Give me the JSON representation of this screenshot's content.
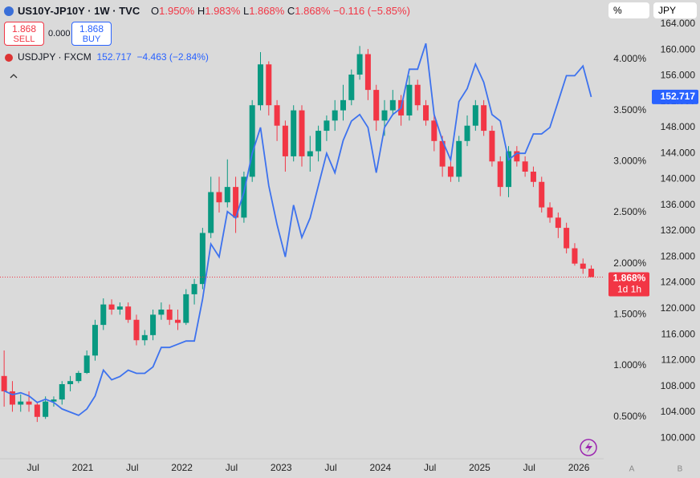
{
  "header": {
    "symbol": "US10Y-JP10Y · 1W · TVC",
    "ohlc": [
      {
        "key": "O",
        "value": "1.950%"
      },
      {
        "key": "H",
        "value": "1.983%"
      },
      {
        "key": "L",
        "value": "1.868%"
      },
      {
        "key": "C",
        "value": "1.868%"
      }
    ],
    "change": "−0.116 (−5.85%)",
    "sell": {
      "price": "1.868",
      "label": "SELL"
    },
    "spread": "0.000",
    "buy": {
      "price": "1.868",
      "label": "BUY"
    },
    "compare": {
      "symbol": "USDJPY · FXCM",
      "price": "152.717",
      "change": "−4.463 (−2.84%)"
    },
    "scale_mode": "%",
    "currency": "JPY"
  },
  "axis_buttons": [
    "A",
    "B"
  ],
  "chart_data": {
    "type": "candlestick",
    "x": [
      "2020-03",
      "2020-04",
      "2020-05",
      "2020-06",
      "2020-07",
      "2020-08",
      "2020-09",
      "2020-10",
      "2020-11",
      "2020-12",
      "2021-01",
      "2021-02",
      "2021-03",
      "2021-04",
      "2021-05",
      "2021-06",
      "2021-07",
      "2021-08",
      "2021-09",
      "2021-10",
      "2021-11",
      "2021-12",
      "2022-01",
      "2022-02",
      "2022-03",
      "2022-04",
      "2022-05",
      "2022-06",
      "2022-07",
      "2022-08",
      "2022-09",
      "2022-10",
      "2022-11",
      "2022-12",
      "2023-01",
      "2023-02",
      "2023-03",
      "2023-04",
      "2023-05",
      "2023-06",
      "2023-07",
      "2023-08",
      "2023-09",
      "2023-10",
      "2023-11",
      "2023-12",
      "2024-01",
      "2024-02",
      "2024-03",
      "2024-04",
      "2024-05",
      "2024-06",
      "2024-07",
      "2024-08",
      "2024-09",
      "2024-10",
      "2024-11",
      "2024-12",
      "2025-01",
      "2025-02",
      "2025-03",
      "2025-04",
      "2025-05",
      "2025-06",
      "2025-07",
      "2025-08",
      "2025-09",
      "2025-10",
      "2025-11",
      "2025-12",
      "2026-01",
      "2026-02"
    ],
    "series": [
      {
        "name": "US10Y-JP10Y",
        "up_color": "#089981",
        "down_color": "#f23645",
        "open": [
          0.9,
          0.75,
          0.62,
          0.65,
          0.62,
          0.5,
          0.65,
          0.67,
          0.82,
          0.85,
          0.93,
          1.1,
          1.4,
          1.6,
          1.55,
          1.58,
          1.45,
          1.25,
          1.3,
          1.5,
          1.55,
          1.45,
          1.42,
          1.7,
          1.8,
          2.3,
          2.7,
          2.6,
          2.75,
          2.45,
          2.85,
          3.55,
          3.95,
          3.55,
          3.35,
          3.05,
          3.5,
          3.05,
          3.1,
          3.3,
          3.4,
          3.5,
          3.6,
          3.85,
          4.05,
          3.7,
          3.4,
          3.5,
          3.6,
          3.45,
          3.75,
          3.55,
          3.4,
          3.2,
          2.95,
          2.85,
          3.2,
          3.35,
          3.55,
          3.3,
          3.0,
          2.75,
          3.1,
          3.0,
          2.9,
          2.8,
          2.55,
          2.45,
          2.35,
          2.15,
          2.0,
          1.95
        ],
        "high": [
          1.15,
          0.85,
          0.72,
          0.75,
          0.65,
          0.7,
          0.7,
          0.85,
          0.9,
          0.95,
          1.15,
          1.45,
          1.66,
          1.65,
          1.62,
          1.62,
          1.5,
          1.35,
          1.55,
          1.62,
          1.6,
          1.55,
          1.75,
          1.85,
          2.35,
          2.85,
          2.85,
          3.02,
          2.85,
          2.9,
          3.6,
          4.07,
          3.98,
          3.6,
          3.4,
          3.55,
          3.55,
          3.25,
          3.35,
          3.45,
          3.6,
          3.75,
          3.9,
          4.13,
          4.1,
          3.75,
          3.6,
          3.7,
          3.65,
          3.84,
          3.8,
          3.6,
          3.45,
          3.25,
          3.0,
          3.25,
          3.45,
          3.6,
          3.6,
          3.35,
          3.05,
          3.15,
          3.15,
          3.05,
          2.95,
          2.85,
          2.6,
          2.5,
          2.4,
          2.2,
          2.05,
          1.983
        ],
        "low": [
          0.6,
          0.55,
          0.55,
          0.55,
          0.45,
          0.48,
          0.6,
          0.62,
          0.75,
          0.83,
          0.92,
          1.05,
          1.35,
          1.5,
          1.5,
          1.42,
          1.2,
          1.2,
          1.25,
          1.45,
          1.4,
          1.35,
          1.4,
          1.6,
          1.75,
          2.25,
          2.5,
          2.55,
          2.3,
          2.4,
          2.8,
          3.5,
          3.45,
          3.2,
          2.9,
          3.0,
          2.95,
          2.9,
          3.0,
          3.2,
          3.3,
          3.4,
          3.55,
          3.8,
          3.6,
          3.3,
          3.25,
          3.45,
          3.35,
          3.4,
          3.5,
          3.35,
          3.1,
          2.85,
          2.8,
          2.8,
          3.15,
          3.3,
          3.25,
          2.95,
          2.66,
          2.65,
          2.95,
          2.85,
          2.75,
          2.5,
          2.4,
          2.25,
          2.1,
          1.98,
          1.9,
          1.868
        ],
        "close": [
          0.75,
          0.62,
          0.65,
          0.62,
          0.5,
          0.65,
          0.67,
          0.82,
          0.85,
          0.93,
          1.1,
          1.4,
          1.6,
          1.55,
          1.58,
          1.45,
          1.25,
          1.3,
          1.5,
          1.55,
          1.45,
          1.42,
          1.7,
          1.8,
          2.3,
          2.7,
          2.6,
          2.75,
          2.45,
          2.85,
          3.55,
          3.95,
          3.55,
          3.35,
          3.05,
          3.5,
          3.05,
          3.1,
          3.3,
          3.4,
          3.5,
          3.6,
          3.85,
          4.05,
          3.7,
          3.4,
          3.5,
          3.6,
          3.45,
          3.75,
          3.55,
          3.4,
          3.2,
          2.95,
          2.85,
          3.2,
          3.35,
          3.55,
          3.3,
          3.0,
          2.75,
          3.1,
          3.0,
          2.9,
          2.8,
          2.55,
          2.45,
          2.35,
          2.15,
          2.0,
          1.95,
          1.868
        ]
      },
      {
        "name": "USDJPY",
        "color": "#3d72ee",
        "axis": "y2",
        "values": [
          107.3,
          106.7,
          107,
          106.5,
          105.5,
          106,
          105.5,
          104.5,
          104,
          103.5,
          104.5,
          106.5,
          110.5,
          109,
          109.5,
          110.5,
          110,
          110,
          111,
          114,
          114,
          114.5,
          115,
          115,
          121.5,
          130,
          128,
          135,
          134,
          138,
          144,
          148,
          139,
          133,
          128,
          136,
          131,
          134,
          139,
          144,
          141,
          146,
          149,
          150,
          148,
          141,
          148,
          150,
          151,
          157,
          157,
          161,
          150,
          146,
          143,
          152,
          154,
          157.8,
          155,
          150,
          149,
          143,
          144,
          144,
          147,
          147,
          148,
          152,
          156,
          156,
          157.5,
          152.717
        ]
      }
    ],
    "xlim": [
      "2020-03",
      "2026-04"
    ],
    "xticks": [
      {
        "value": "2020-07",
        "label": "Jul"
      },
      {
        "value": "2021-01",
        "label": "2021"
      },
      {
        "value": "2021-07",
        "label": "Jul"
      },
      {
        "value": "2022-01",
        "label": "2022"
      },
      {
        "value": "2022-07",
        "label": "Jul"
      },
      {
        "value": "2023-01",
        "label": "2023"
      },
      {
        "value": "2023-07",
        "label": "Jul"
      },
      {
        "value": "2024-01",
        "label": "2024"
      },
      {
        "value": "2024-07",
        "label": "Jul"
      },
      {
        "value": "2025-01",
        "label": "2025"
      },
      {
        "value": "2025-07",
        "label": "Jul"
      },
      {
        "value": "2026-01",
        "label": "2026"
      }
    ],
    "ylim": [
      0.09,
      4.58
    ],
    "yticks": [
      {
        "value": 0.5,
        "label": "0.500%"
      },
      {
        "value": 1,
        "label": "1.000%"
      },
      {
        "value": 1.5,
        "label": "1.500%"
      },
      {
        "value": 2,
        "label": "2.000%"
      },
      {
        "value": 2.5,
        "label": "2.500%"
      },
      {
        "value": 3,
        "label": "3.000%"
      },
      {
        "value": 3.5,
        "label": "3.500%"
      },
      {
        "value": 4,
        "label": "4.000%"
      }
    ],
    "y2lim": [
      96.8,
      167.7
    ],
    "y2ticks": [
      {
        "value": 100,
        "label": "100.000"
      },
      {
        "value": 104,
        "label": "104.000"
      },
      {
        "value": 108,
        "label": "108.000"
      },
      {
        "value": 112,
        "label": "112.000"
      },
      {
        "value": 116,
        "label": "116.000"
      },
      {
        "value": 120,
        "label": "120.000"
      },
      {
        "value": 124,
        "label": "124.000"
      },
      {
        "value": 128,
        "label": "128.000"
      },
      {
        "value": 132,
        "label": "132.000"
      },
      {
        "value": 136,
        "label": "136.000"
      },
      {
        "value": 140,
        "label": "140.000"
      },
      {
        "value": 144,
        "label": "144.000"
      },
      {
        "value": 148,
        "label": "148.000"
      },
      {
        "value": 152,
        "label": "152.000"
      },
      {
        "value": 156,
        "label": "156.000"
      },
      {
        "value": 160,
        "label": "160.000"
      },
      {
        "value": 164,
        "label": "164.000"
      }
    ],
    "grid": false,
    "price_tags": {
      "primary": {
        "value": 1.868,
        "label": "1.868%",
        "countdown": "1d 1h",
        "color": "#f23645"
      },
      "secondary": {
        "value": 152.717,
        "label": "152.717",
        "color": "#2962ff"
      }
    }
  }
}
